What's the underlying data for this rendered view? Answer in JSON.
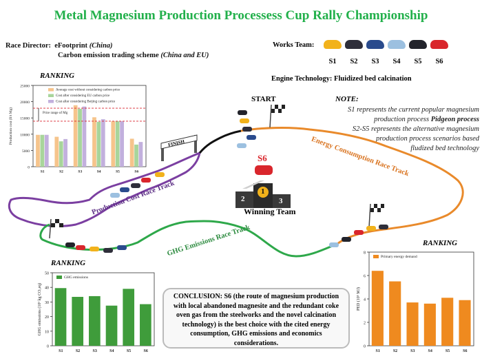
{
  "title": "Metal Magnesium Production Processess Cup  Rally Championship",
  "race_director": {
    "label": "Race Director:",
    "line1_plain": "eFootprint ",
    "line1_italic": "(China)",
    "line2_plain": "Carbon emission trading scheme ",
    "line2_italic": "(China and EU)"
  },
  "works_team": {
    "label": "Works Team:",
    "cars": [
      {
        "label": "S1",
        "color": "#f2b21b"
      },
      {
        "label": "S2",
        "color": "#2e2e3a"
      },
      {
        "label": "S3",
        "color": "#2a4b8d"
      },
      {
        "label": "S4",
        "color": "#9cc0e0"
      },
      {
        "label": "S5",
        "color": "#22232b"
      },
      {
        "label": "S6",
        "color": "#d9262c"
      }
    ]
  },
  "engine_technology": "Engine Technology: Fluidized bed calcination",
  "note": {
    "title": "NOTE:",
    "line1": "S1 represents the current popular magnesium",
    "line2a": "production process ",
    "line2b": "Pidgeon process",
    "line3": "S2-S5 represents the alternative magnesium",
    "line4": "production process scenarios based",
    "line5": "fludized bed technology"
  },
  "labels": {
    "start": "START",
    "finish": "FINISH",
    "winner": "S6",
    "winning_team": "Winning Team",
    "podium": [
      "2",
      "1",
      "3"
    ]
  },
  "tracks": {
    "production": "Production Cost Race Track",
    "energy": "Energy Consumption Race Track",
    "ghg": "GHG Emissions Race Track"
  },
  "conclusion": "CONCLUSION: S6 (the route of magnesium production with local abandoned magnesite and the redundant coke oven gas from the steelworks and the novel calcination technology) is the best choice with the cited energy consumption, GHG emissions and economics considerations.",
  "colors": {
    "title": "#22b04b",
    "production_track": "#7b3fa1",
    "energy_track": "#e98a2b",
    "ghg_track": "#2ea84a",
    "finish_track": "#111111"
  },
  "chart_data": [
    {
      "type": "bar",
      "ranking_label": "RANKING",
      "categories": [
        "S1",
        "S2",
        "S3",
        "S4",
        "S5",
        "S6"
      ],
      "ylabel": "Production cost (¥/t Mg)",
      "ylim": [
        0,
        25000
      ],
      "yticks": [
        0,
        5000,
        10000,
        15000,
        20000,
        25000
      ],
      "series": [
        {
          "name": "Average cost without considering carbon price",
          "color": "#f6c48c",
          "values": [
            9800,
            9200,
            18900,
            15200,
            14000,
            8600
          ]
        },
        {
          "name": "Cost after considering EU carbon price",
          "color": "#a8d59b",
          "values": [
            9800,
            7800,
            17800,
            13800,
            14000,
            6800
          ]
        },
        {
          "name": "Cost after considering Beijing carbon price",
          "color": "#c2b0dd",
          "values": [
            9800,
            8500,
            18500,
            14600,
            14000,
            7600
          ]
        }
      ],
      "annotation": "Price range of Mg",
      "price_range": [
        14000,
        18000
      ]
    },
    {
      "type": "bar",
      "ranking_label": "RANKING",
      "categories": [
        "S1",
        "S2",
        "S3",
        "S4",
        "S5",
        "S6"
      ],
      "ylabel": "GHG emissions (10³ kg CO₂eq)",
      "ylim": [
        0,
        50
      ],
      "yticks": [
        0,
        10,
        20,
        30,
        40,
        50
      ],
      "series": [
        {
          "name": "GHG emissions",
          "color": "#3f9c3b",
          "values": [
            39.5,
            33.5,
            34,
            27.5,
            39,
            28.5
          ]
        }
      ]
    },
    {
      "type": "bar",
      "ranking_label": "RANKING",
      "categories": [
        "S1",
        "S2",
        "S3",
        "S4",
        "S5",
        "S6"
      ],
      "ylabel": "PED (10⁵ MJ)",
      "ylim": [
        0,
        8
      ],
      "yticks": [
        0,
        2,
        4,
        6,
        8
      ],
      "series": [
        {
          "name": "Primary energy demand",
          "color": "#ef8a1f",
          "values": [
            6.4,
            5.5,
            3.7,
            3.6,
            4.1,
            3.9
          ]
        }
      ]
    }
  ]
}
